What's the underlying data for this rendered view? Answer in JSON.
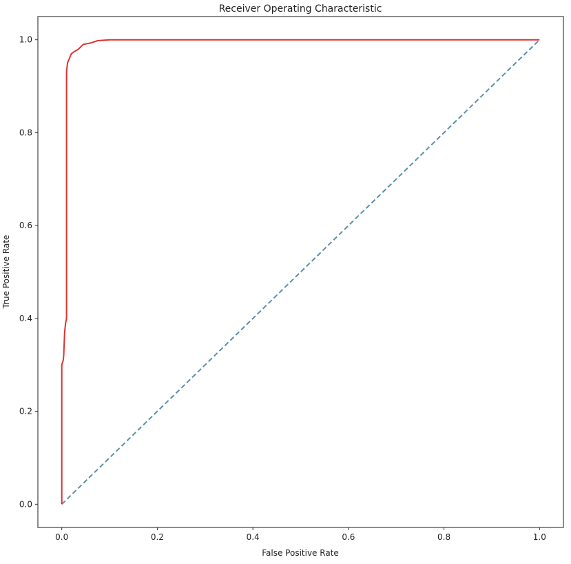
{
  "chart_data": {
    "type": "line",
    "title": "Receiver Operating Characteristic",
    "xlabel": "False Positive Rate",
    "ylabel": "True Positive Rate",
    "xlim": [
      -0.05,
      1.05
    ],
    "ylim": [
      -0.05,
      1.05
    ],
    "xticks": [
      "0.0",
      "0.2",
      "0.4",
      "0.6",
      "0.8",
      "1.0"
    ],
    "yticks": [
      "0.0",
      "0.2",
      "0.4",
      "0.6",
      "0.8",
      "1.0"
    ],
    "grid": false,
    "series": [
      {
        "style": "solid",
        "color": "#e03030",
        "x": [
          0,
          0,
          0.003,
          0.004,
          0.006,
          0.008,
          0.01,
          0.01,
          0.012,
          0.016,
          0.02,
          0.027,
          0.035,
          0.045,
          0.06,
          0.075,
          0.1,
          1
        ],
        "y": [
          0,
          0.3,
          0.31,
          0.32,
          0.37,
          0.39,
          0.4,
          0.93,
          0.95,
          0.96,
          0.97,
          0.975,
          0.98,
          0.99,
          0.993,
          0.998,
          1,
          1
        ]
      },
      {
        "style": "dashed",
        "color": "#5a8fa8",
        "x": [
          0,
          1
        ],
        "y": [
          0,
          1
        ]
      }
    ]
  }
}
